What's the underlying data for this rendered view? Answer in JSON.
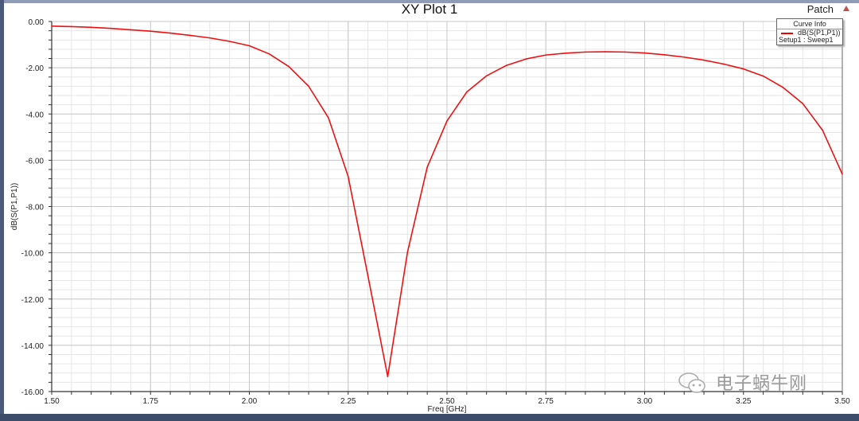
{
  "window": {
    "title": "XY Plot 1",
    "project": "Patch"
  },
  "legend": {
    "header": "Curve Info",
    "curve": "dB(S(P1,P1))",
    "setup": "Setup1 : Sweep1"
  },
  "watermark": {
    "text": "电子蜗牛刚",
    "icon": "wechat-icon"
  },
  "chart_data": {
    "type": "line",
    "title": "XY Plot 1",
    "xlabel": "Freq [GHz]",
    "ylabel": "dB(S(P1,P1))",
    "xlim": [
      1.5,
      3.5
    ],
    "ylim": [
      -16,
      0
    ],
    "grid": true,
    "legend_position": "top-right",
    "xticks": [
      "1.50",
      "1.75",
      "2.00",
      "2.25",
      "2.50",
      "2.75",
      "3.00",
      "3.25",
      "3.50"
    ],
    "yticks": [
      "0.00",
      "-2.00",
      "-4.00",
      "-6.00",
      "-8.00",
      "-10.00",
      "-12.00",
      "-14.00",
      "-16.00"
    ],
    "series": [
      {
        "name": "dB(S(P1,P1))",
        "color": "#ee1111",
        "x": [
          1.5,
          1.55,
          1.6,
          1.65,
          1.7,
          1.75,
          1.8,
          1.85,
          1.9,
          1.95,
          2.0,
          2.05,
          2.1,
          2.15,
          2.2,
          2.25,
          2.3,
          2.35,
          2.4,
          2.45,
          2.5,
          2.55,
          2.6,
          2.65,
          2.7,
          2.75,
          2.8,
          2.85,
          2.9,
          2.95,
          3.0,
          3.05,
          3.1,
          3.15,
          3.2,
          3.25,
          3.3,
          3.35,
          3.4,
          3.45,
          3.5
        ],
        "y": [
          -0.2,
          -0.22,
          -0.25,
          -0.3,
          -0.36,
          -0.42,
          -0.5,
          -0.6,
          -0.71,
          -0.86,
          -1.05,
          -1.4,
          -1.95,
          -2.8,
          -4.16,
          -6.7,
          -11.0,
          -15.35,
          -9.98,
          -6.3,
          -4.3,
          -3.05,
          -2.35,
          -1.9,
          -1.62,
          -1.45,
          -1.37,
          -1.32,
          -1.31,
          -1.32,
          -1.36,
          -1.44,
          -1.54,
          -1.67,
          -1.84,
          -2.05,
          -2.36,
          -2.85,
          -3.55,
          -4.7,
          -6.6
        ]
      }
    ]
  }
}
